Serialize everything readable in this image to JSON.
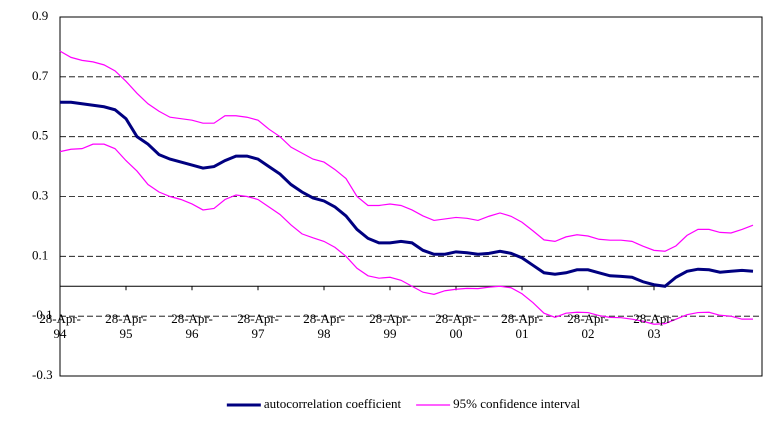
{
  "chart_data": {
    "type": "line",
    "categories": [
      "28-Apr-94",
      null,
      null,
      null,
      null,
      null,
      "28-Apr-95",
      null,
      null,
      null,
      null,
      null,
      "28-Apr-96",
      null,
      null,
      null,
      null,
      null,
      "28-Apr-97",
      null,
      null,
      null,
      null,
      null,
      "28-Apr-98",
      null,
      null,
      null,
      null,
      null,
      "28-Apr-99",
      null,
      null,
      null,
      null,
      null,
      "28-Apr-00",
      null,
      null,
      null,
      null,
      null,
      "28-Apr-01",
      null,
      null,
      null,
      null,
      null,
      "28-Apr-02",
      null,
      null,
      null,
      null,
      null,
      "28-Apr-03",
      null,
      null,
      null,
      null,
      null,
      null,
      null,
      null,
      null
    ],
    "series": [
      {
        "name": "autocorrelation coefficient",
        "color": "#000080",
        "values": [
          0.615,
          0.615,
          0.61,
          0.605,
          0.6,
          0.59,
          0.56,
          0.5,
          0.475,
          0.44,
          0.425,
          0.415,
          0.405,
          0.395,
          0.4,
          0.42,
          0.435,
          0.435,
          0.425,
          0.4,
          0.375,
          0.34,
          0.315,
          0.295,
          0.285,
          0.265,
          0.235,
          0.19,
          0.16,
          0.145,
          0.145,
          0.15,
          0.145,
          0.12,
          0.107,
          0.107,
          0.115,
          0.112,
          0.107,
          0.11,
          0.117,
          0.11,
          0.095,
          0.07,
          0.045,
          0.04,
          0.045,
          0.055,
          0.055,
          0.045,
          0.035,
          0.033,
          0.03,
          0.015,
          0.005,
          0,
          0.03,
          0.05,
          0.057,
          0.055,
          0.047,
          0.05,
          0.053,
          0.05
        ]
      },
      {
        "name": "95% confidence interval",
        "color": "#ff00ff",
        "values": [
          0.786,
          0.765,
          0.755,
          0.75,
          0.74,
          0.72,
          0.685,
          0.645,
          0.61,
          0.585,
          0.565,
          0.56,
          0.555,
          0.545,
          0.545,
          0.57,
          0.57,
          0.565,
          0.555,
          0.525,
          0.5,
          0.465,
          0.445,
          0.425,
          0.415,
          0.39,
          0.36,
          0.3,
          0.27,
          0.27,
          0.275,
          0.27,
          0.255,
          0.235,
          0.22,
          0.225,
          0.23,
          0.227,
          0.22,
          0.234,
          0.245,
          0.234,
          0.214,
          0.185,
          0.155,
          0.15,
          0.165,
          0.172,
          0.168,
          0.157,
          0.154,
          0.154,
          0.15,
          0.134,
          0.12,
          0.117,
          0.135,
          0.17,
          0.19,
          0.19,
          0.18,
          0.178,
          0.19,
          0.204
        ],
        "lower": [
          0.45,
          0.458,
          0.46,
          0.475,
          0.475,
          0.46,
          0.42,
          0.385,
          0.34,
          0.315,
          0.3,
          0.29,
          0.275,
          0.255,
          0.26,
          0.29,
          0.305,
          0.3,
          0.29,
          0.265,
          0.24,
          0.205,
          0.175,
          0.162,
          0.15,
          0.13,
          0.1,
          0.06,
          0.035,
          0.027,
          0.03,
          0.02,
          0,
          -0.02,
          -0.027,
          -0.015,
          -0.01,
          -0.007,
          -0.008,
          -0.003,
          0,
          -0.005,
          -0.025,
          -0.055,
          -0.09,
          -0.104,
          -0.09,
          -0.087,
          -0.088,
          -0.098,
          -0.104,
          -0.105,
          -0.11,
          -0.117,
          -0.127,
          -0.125,
          -0.11,
          -0.095,
          -0.088,
          -0.087,
          -0.097,
          -0.1,
          -0.11,
          -0.11
        ]
      }
    ],
    "ylim": [
      -0.3,
      0.9
    ],
    "yticks": [
      -0.3,
      -0.1,
      0.1,
      0.3,
      0.5,
      0.7,
      0.9
    ],
    "grid": true,
    "legend": "bottom"
  }
}
